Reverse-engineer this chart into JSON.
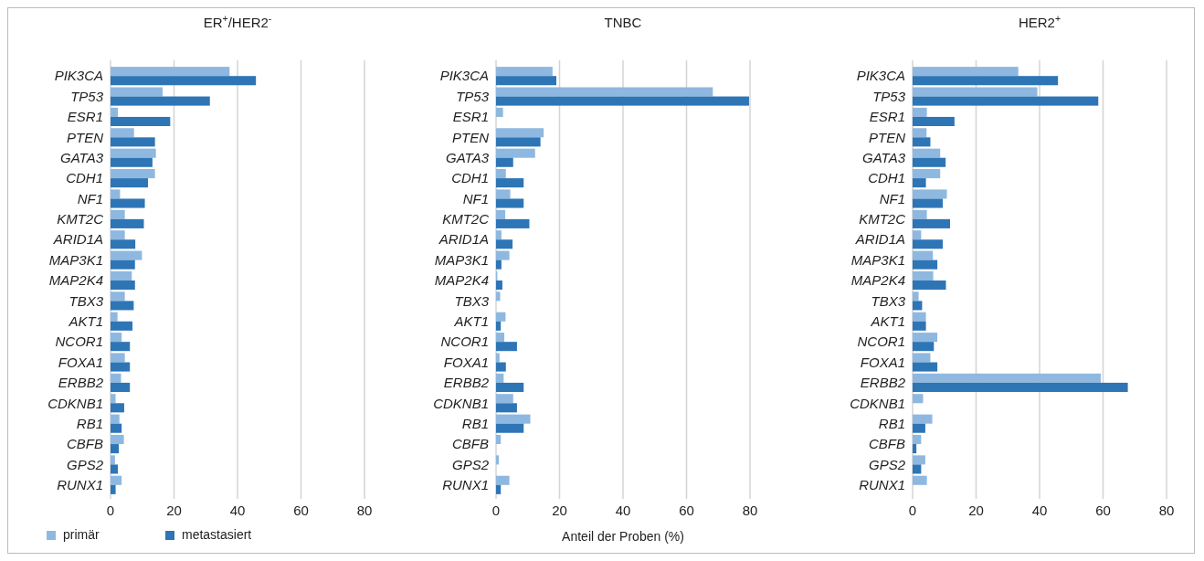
{
  "chart_data": [
    {
      "type": "bar",
      "orientation": "horizontal",
      "title": "ER$^{+}$/HER2$^{-}$",
      "categories": [
        "PIK3CA",
        "TP53",
        "ESR1",
        "PTEN",
        "GATA3",
        "CDH1",
        "NF1",
        "KMT2C",
        "ARID1A",
        "MAP3K1",
        "MAP2K4",
        "TBX3",
        "AKT1",
        "NCOR1",
        "FOXA1",
        "ERBB2",
        "CDKNB1",
        "RB1",
        "CBFB",
        "GPS2",
        "RUNX1"
      ],
      "series": [
        {
          "name": "primär",
          "color": "#8fb8e0",
          "values": [
            37.5,
            16.4,
            2.3,
            7.4,
            14.3,
            14.0,
            3.0,
            4.5,
            4.5,
            9.9,
            6.7,
            4.5,
            2.2,
            3.5,
            4.5,
            3.3,
            1.6,
            2.8,
            4.2,
            1.4,
            3.5
          ]
        },
        {
          "name": "metastasiert",
          "color": "#2e75b6",
          "values": [
            45.8,
            31.3,
            18.8,
            14.0,
            13.2,
            11.8,
            10.8,
            10.5,
            7.8,
            7.7,
            7.7,
            7.3,
            6.9,
            6.1,
            6.1,
            6.1,
            4.3,
            3.5,
            2.6,
            2.3,
            1.6
          ]
        }
      ],
      "xlim": [
        0,
        80
      ],
      "xticks": [
        0,
        20,
        40,
        60,
        80
      ],
      "grid": "x",
      "legend": "bottom left"
    },
    {
      "type": "bar",
      "orientation": "horizontal",
      "title": "TNBC",
      "xlabel": "Anteil der Proben (%)",
      "categories": [
        "PIK3CA",
        "TP53",
        "ESR1",
        "PTEN",
        "GATA3",
        "CDH1",
        "NF1",
        "KMT2C",
        "ARID1A",
        "MAP3K1",
        "MAP2K4",
        "TBX3",
        "AKT1",
        "NCOR1",
        "FOXA1",
        "ERBB2",
        "CDKNB1",
        "RB1",
        "CBFB",
        "GPS2",
        "RUNX1"
      ],
      "series": [
        {
          "color": "#8fb8e0",
          "values": [
            17.8,
            68.3,
            2.2,
            15.0,
            12.3,
            3.1,
            4.5,
            2.9,
            1.7,
            4.2,
            0.4,
            1.3,
            3.0,
            2.6,
            1.1,
            2.4,
            5.4,
            10.8,
            1.5,
            0.9,
            4.2
          ]
        },
        {
          "color": "#2e75b6",
          "values": [
            19.0,
            79.7,
            0,
            14.0,
            5.4,
            8.7,
            8.7,
            10.5,
            5.2,
            1.7,
            2.0,
            0,
            1.5,
            6.6,
            3.1,
            8.7,
            6.6,
            8.7,
            0,
            0,
            1.5
          ]
        }
      ],
      "xlim": [
        0,
        80
      ],
      "xticks": [
        0,
        20,
        40,
        60,
        80
      ],
      "grid": "x"
    },
    {
      "type": "bar",
      "orientation": "horizontal",
      "title": "HER2$^{+}$",
      "categories": [
        "PIK3CA",
        "TP53",
        "ESR1",
        "PTEN",
        "GATA3",
        "CDH1",
        "NF1",
        "KMT2C",
        "ARID1A",
        "MAP3K1",
        "MAP2K4",
        "TBX3",
        "AKT1",
        "NCOR1",
        "FOXA1",
        "ERBB2",
        "CDKNB1",
        "RB1",
        "CBFB",
        "GPS2",
        "RUNX1"
      ],
      "series": [
        {
          "color": "#8fb8e0",
          "values": [
            33.3,
            39.3,
            4.5,
            4.4,
            8.7,
            8.7,
            10.8,
            4.5,
            2.7,
            6.4,
            6.5,
            1.9,
            4.2,
            7.8,
            5.6,
            59.3,
            3.3,
            6.2,
            2.7,
            4.0,
            4.5
          ]
        },
        {
          "color": "#2e75b6",
          "values": [
            45.8,
            58.5,
            13.2,
            5.6,
            10.4,
            4.2,
            9.5,
            11.8,
            9.5,
            7.8,
            10.5,
            3.0,
            4.2,
            6.7,
            7.8,
            67.8,
            0,
            4.0,
            1.2,
            2.7,
            0
          ]
        }
      ],
      "xlim": [
        0,
        80
      ],
      "xticks": [
        0,
        20,
        40,
        60,
        80
      ],
      "grid": "x"
    }
  ]
}
